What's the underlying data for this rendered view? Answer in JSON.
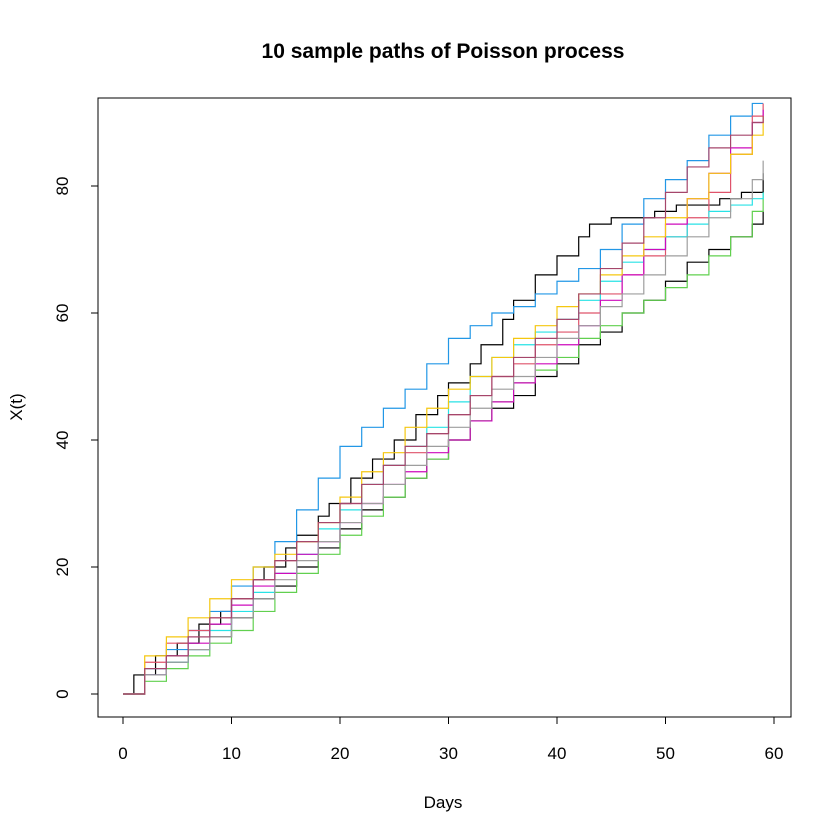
{
  "chart_data": {
    "type": "line",
    "step": true,
    "title": "10 sample paths of Poisson process",
    "xlabel": "Days",
    "ylabel": "X(t)",
    "xlim": [
      0,
      60
    ],
    "ylim": [
      0,
      93
    ],
    "xticks": [
      0,
      10,
      20,
      30,
      40,
      50,
      60
    ],
    "yticks": [
      0,
      20,
      40,
      60,
      80
    ],
    "grid": false,
    "legend": "none",
    "series": [
      {
        "color": "#000000",
        "x": [
          0,
          1,
          3,
          5,
          7,
          9,
          10,
          12,
          13,
          15,
          16,
          18,
          19,
          21,
          23,
          25,
          27,
          29,
          30,
          32,
          33,
          35,
          36,
          38,
          40,
          42,
          43,
          45,
          47,
          49,
          51,
          53,
          55,
          57,
          59
        ],
        "y": [
          0,
          3,
          6,
          8,
          11,
          13,
          15,
          18,
          20,
          23,
          25,
          28,
          30,
          34,
          37,
          40,
          44,
          47,
          49,
          52,
          55,
          59,
          62,
          66,
          69,
          72,
          74,
          75,
          75,
          76,
          77,
          77,
          78,
          79,
          82
        ]
      },
      {
        "color": "#000000",
        "x": [
          0,
          2,
          4,
          6,
          8,
          10,
          12,
          14,
          16,
          18,
          20,
          22,
          24,
          26,
          28,
          30,
          32,
          34,
          36,
          38,
          40,
          42,
          44,
          46,
          48,
          50,
          52,
          54,
          56,
          58,
          59
        ],
        "y": [
          0,
          3,
          5,
          7,
          9,
          12,
          15,
          17,
          20,
          23,
          26,
          29,
          31,
          34,
          37,
          40,
          43,
          45,
          47,
          50,
          52,
          55,
          57,
          60,
          62,
          65,
          68,
          70,
          72,
          74,
          76
        ]
      },
      {
        "color": "#2297E6",
        "x": [
          0,
          2,
          4,
          6,
          8,
          10,
          12,
          14,
          16,
          18,
          20,
          22,
          24,
          26,
          28,
          30,
          32,
          34,
          36,
          38,
          40,
          42,
          44,
          46,
          48,
          50,
          52,
          54,
          56,
          58,
          59
        ],
        "y": [
          0,
          4,
          7,
          10,
          13,
          17,
          20,
          24,
          29,
          34,
          39,
          42,
          45,
          48,
          52,
          56,
          58,
          60,
          61,
          63,
          65,
          67,
          70,
          74,
          78,
          81,
          84,
          88,
          91,
          93,
          93
        ]
      },
      {
        "color": "#DF536B",
        "x": [
          0,
          2,
          4,
          6,
          8,
          10,
          12,
          14,
          16,
          18,
          20,
          22,
          24,
          26,
          28,
          30,
          32,
          34,
          36,
          38,
          40,
          42,
          44,
          46,
          48,
          50,
          52,
          54,
          56,
          58,
          59
        ],
        "y": [
          0,
          5,
          8,
          10,
          12,
          15,
          18,
          21,
          24,
          27,
          30,
          33,
          36,
          38,
          41,
          44,
          47,
          50,
          52,
          55,
          57,
          60,
          63,
          66,
          69,
          72,
          75,
          79,
          85,
          91,
          93
        ]
      },
      {
        "color": "#61D04F",
        "x": [
          0,
          2,
          4,
          6,
          8,
          10,
          12,
          14,
          16,
          18,
          20,
          22,
          24,
          26,
          28,
          30,
          32,
          34,
          36,
          38,
          40,
          42,
          44,
          46,
          48,
          50,
          52,
          54,
          56,
          58,
          59
        ],
        "y": [
          0,
          2,
          4,
          6,
          8,
          10,
          13,
          16,
          19,
          22,
          25,
          28,
          31,
          34,
          37,
          40,
          43,
          46,
          49,
          51,
          53,
          56,
          58,
          60,
          62,
          64,
          66,
          69,
          72,
          76,
          79
        ]
      },
      {
        "color": "#28E2E5",
        "x": [
          0,
          2,
          4,
          6,
          8,
          10,
          12,
          14,
          16,
          18,
          20,
          22,
          24,
          26,
          28,
          30,
          32,
          34,
          36,
          38,
          40,
          42,
          44,
          46,
          48,
          50,
          52,
          54,
          56,
          58,
          59
        ],
        "y": [
          0,
          3,
          5,
          7,
          10,
          13,
          16,
          19,
          22,
          26,
          29,
          33,
          36,
          39,
          42,
          46,
          50,
          53,
          55,
          57,
          59,
          62,
          65,
          68,
          70,
          72,
          74,
          76,
          77,
          78,
          79
        ]
      },
      {
        "color": "#CD0BBC",
        "x": [
          0,
          2,
          4,
          6,
          8,
          10,
          12,
          14,
          16,
          18,
          20,
          22,
          24,
          26,
          28,
          30,
          32,
          34,
          36,
          38,
          40,
          42,
          44,
          46,
          48,
          50,
          52,
          54,
          56,
          58,
          59
        ],
        "y": [
          0,
          3,
          6,
          8,
          11,
          14,
          17,
          19,
          22,
          24,
          27,
          30,
          33,
          35,
          38,
          40,
          43,
          46,
          49,
          52,
          55,
          58,
          62,
          66,
          70,
          74,
          78,
          82,
          86,
          90,
          92
        ]
      },
      {
        "color": "#F5C710",
        "x": [
          0,
          2,
          4,
          6,
          8,
          10,
          12,
          14,
          16,
          18,
          20,
          22,
          24,
          26,
          28,
          30,
          32,
          34,
          36,
          38,
          40,
          42,
          44,
          46,
          48,
          50,
          52,
          54,
          56,
          58,
          59
        ],
        "y": [
          0,
          6,
          9,
          12,
          15,
          18,
          20,
          22,
          24,
          27,
          31,
          35,
          38,
          42,
          45,
          48,
          50,
          53,
          56,
          58,
          61,
          63,
          66,
          69,
          72,
          75,
          78,
          82,
          85,
          88,
          91
        ]
      },
      {
        "color": "#9E9E9E",
        "x": [
          0,
          2,
          4,
          6,
          8,
          10,
          12,
          14,
          16,
          18,
          20,
          22,
          24,
          26,
          28,
          30,
          32,
          34,
          36,
          38,
          40,
          42,
          44,
          46,
          48,
          50,
          52,
          54,
          56,
          58,
          59
        ],
        "y": [
          0,
          3,
          5,
          7,
          9,
          12,
          15,
          18,
          21,
          24,
          27,
          30,
          33,
          36,
          39,
          42,
          45,
          48,
          50,
          53,
          56,
          58,
          61,
          63,
          66,
          69,
          72,
          75,
          78,
          81,
          84
        ]
      },
      {
        "color": "#A5466B",
        "x": [
          0,
          2,
          4,
          6,
          8,
          10,
          12,
          14,
          16,
          18,
          20,
          22,
          24,
          26,
          28,
          30,
          32,
          34,
          36,
          38,
          40,
          42,
          44,
          46,
          48,
          50,
          52,
          54,
          56,
          58,
          59
        ],
        "y": [
          0,
          4,
          6,
          9,
          12,
          15,
          18,
          21,
          24,
          27,
          30,
          33,
          36,
          39,
          41,
          44,
          47,
          50,
          53,
          56,
          59,
          63,
          67,
          71,
          75,
          79,
          83,
          86,
          88,
          90,
          91
        ]
      }
    ]
  }
}
